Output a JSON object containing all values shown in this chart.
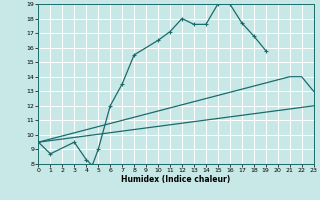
{
  "xlabel": "Humidex (Indice chaleur)",
  "bg_color": "#c8e8e8",
  "grid_color": "#b0d4d4",
  "line_color": "#1a6b6b",
  "xlim": [
    0,
    23
  ],
  "ylim": [
    8,
    19
  ],
  "xticks": [
    0,
    1,
    2,
    3,
    4,
    5,
    6,
    7,
    8,
    9,
    10,
    11,
    12,
    13,
    14,
    15,
    16,
    17,
    18,
    19,
    20,
    21,
    22,
    23
  ],
  "yticks": [
    8,
    9,
    10,
    11,
    12,
    13,
    14,
    15,
    16,
    17,
    18,
    19
  ],
  "line1_x": [
    0,
    1,
    3,
    4,
    4.5,
    5,
    6,
    7,
    8,
    10,
    11,
    12,
    13,
    14,
    15,
    16,
    17,
    18,
    19
  ],
  "line1_y": [
    9.5,
    8.7,
    9.5,
    8.3,
    7.9,
    9.0,
    12.0,
    13.5,
    15.5,
    16.5,
    17.1,
    18.0,
    17.6,
    17.6,
    19.0,
    19.0,
    17.7,
    16.8,
    15.8
  ],
  "line2_x": [
    0,
    23
  ],
  "line2_y": [
    9.5,
    12.0
  ],
  "line3_x": [
    0,
    21,
    22,
    23
  ],
  "line3_y": [
    9.5,
    14.0,
    14.0,
    13.0
  ]
}
